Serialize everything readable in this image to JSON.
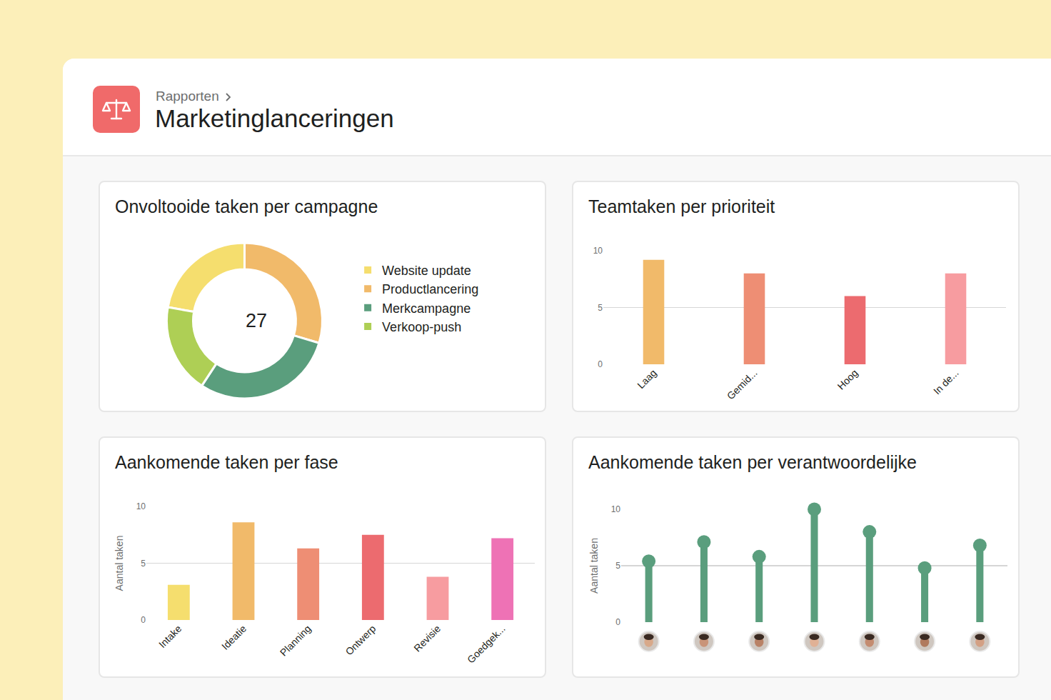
{
  "header": {
    "breadcrumb": "Rapporten",
    "title": "Marketinglanceringen"
  },
  "chart_data": [
    {
      "type": "pie",
      "title": "Onvoltooide taken per campagne",
      "categories": [
        "Website update",
        "Productlancering",
        "Merkcampagne",
        "Verkoop-push"
      ],
      "values": [
        6,
        8,
        8,
        5
      ],
      "colors": [
        "#F5DE6E",
        "#F1BA6A",
        "#5A9E7D",
        "#AECF55"
      ],
      "center_value": 27,
      "legend": "right"
    },
    {
      "type": "bar",
      "title": "Teamtaken per prioriteit",
      "categories": [
        "Laag",
        "Gemid...",
        "Hoog",
        "In de..."
      ],
      "values": [
        9.2,
        8,
        6,
        8
      ],
      "colors": [
        "#F1BA6A",
        "#EE8E74",
        "#EC6B6F",
        "#F79CA0"
      ],
      "ylim": [
        0,
        10
      ],
      "yticks": [
        0,
        5,
        10
      ],
      "grid": true
    },
    {
      "type": "bar",
      "title": "Aankomende taken per fase",
      "ylabel": "Aantal taken",
      "categories": [
        "Intake",
        "Ideatie",
        "Planning",
        "Ontwerp",
        "Revisie",
        "Goedgek..."
      ],
      "values": [
        3.1,
        8.6,
        6.3,
        7.5,
        3.8,
        7.2
      ],
      "colors": [
        "#F5DE6E",
        "#F1BA6A",
        "#EE8E74",
        "#EC6B6F",
        "#F79CA0",
        "#EE72B5"
      ],
      "ylim": [
        0,
        10
      ],
      "yticks": [
        0,
        5,
        10
      ],
      "grid": true
    },
    {
      "type": "lollipop",
      "title": "Aankomende taken per verantwoordelijke",
      "ylabel": "Aantal taken",
      "categories": [
        null,
        null,
        null,
        null,
        null,
        null,
        null
      ],
      "values": [
        5.4,
        7.1,
        5.8,
        10,
        8,
        4.8,
        6.8
      ],
      "color": "#5A9E7D",
      "marker": "circle",
      "ylim": [
        0,
        10
      ],
      "yticks": [
        0,
        5,
        10
      ],
      "grid": true,
      "tick_labels": "y"
    }
  ]
}
